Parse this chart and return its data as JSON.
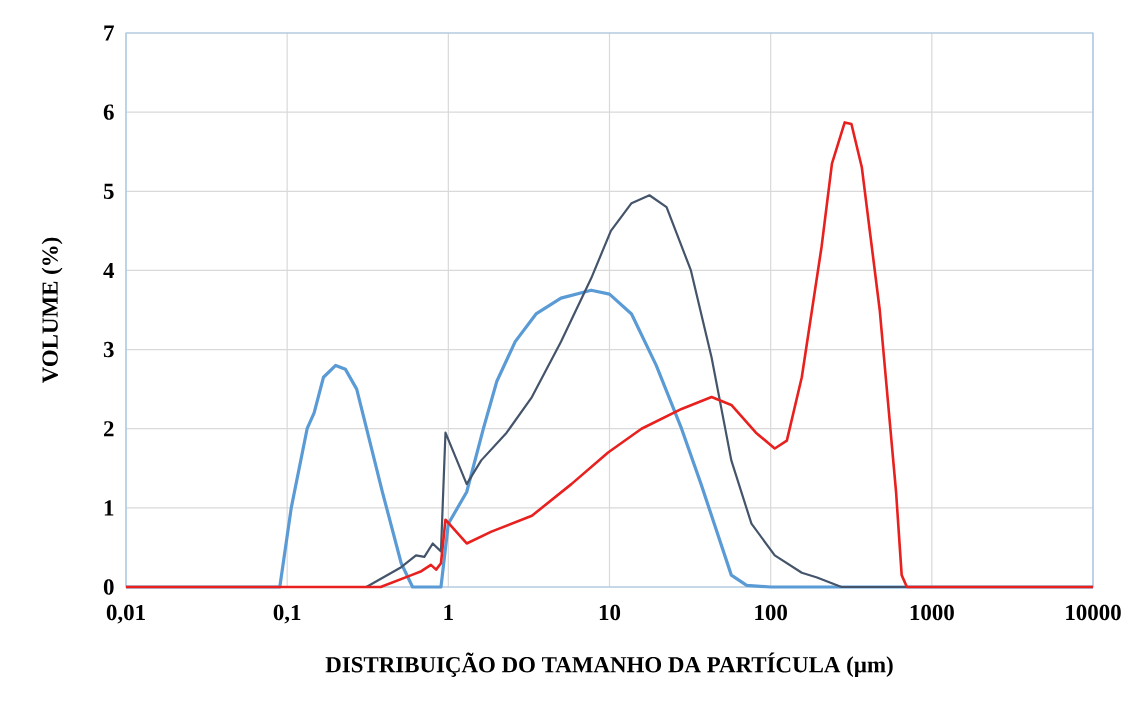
{
  "chart_data": {
    "type": "line",
    "xlabel": "DISTRIBUIÇÃO DO TAMANHO DA PARTÍCULA (µm)",
    "ylabel": "VOLUME (%)",
    "log": "x",
    "grid": true,
    "xlim": [
      0.01,
      10000
    ],
    "ylim": [
      0,
      7
    ],
    "xticks": [
      {
        "value": 0.01,
        "label": "0,01"
      },
      {
        "value": 0.1,
        "label": "0,1"
      },
      {
        "value": 1,
        "label": "1"
      },
      {
        "value": 10,
        "label": "10"
      },
      {
        "value": 100,
        "label": "100"
      },
      {
        "value": 1000,
        "label": "1000"
      },
      {
        "value": 10000,
        "label": "10000"
      }
    ],
    "yticks": [
      0,
      1,
      2,
      3,
      4,
      5,
      6,
      7
    ],
    "series": [
      {
        "color": "#5b9bd5",
        "x": [
          0.01,
          0.09,
          0.106,
          0.133,
          0.147,
          0.168,
          0.2,
          0.23,
          0.27,
          0.32,
          0.39,
          0.51,
          0.6,
          0.9,
          1.0,
          1.3,
          1.65,
          2.0,
          2.6,
          3.5,
          5,
          7.7,
          10,
          13.7,
          19.5,
          28,
          37,
          57,
          71,
          100,
          10000
        ],
        "values": [
          0,
          0,
          1.0,
          2.0,
          2.2,
          2.65,
          2.8,
          2.75,
          2.5,
          1.9,
          1.2,
          0.3,
          0,
          0,
          0.8,
          1.2,
          2.0,
          2.6,
          3.1,
          3.45,
          3.65,
          3.75,
          3.7,
          3.45,
          2.8,
          2.0,
          1.3,
          0.15,
          0.02,
          0,
          0
        ]
      },
      {
        "color": "#44546a",
        "x": [
          0.01,
          0.31,
          0.51,
          0.63,
          0.71,
          0.8,
          0.9,
          0.96,
          1.3,
          1.6,
          2.3,
          3.3,
          5,
          7.7,
          10.2,
          13.7,
          17.7,
          22.6,
          32,
          43,
          57,
          76,
          106,
          156,
          194,
          275,
          10000
        ],
        "values": [
          0,
          0,
          0.25,
          0.4,
          0.38,
          0.55,
          0.45,
          1.95,
          1.3,
          1.6,
          1.95,
          2.4,
          3.1,
          3.9,
          4.5,
          4.85,
          4.95,
          4.8,
          4.0,
          2.9,
          1.6,
          0.8,
          0.4,
          0.18,
          0.12,
          0,
          0
        ]
      },
      {
        "color": "#e8201e",
        "x": [
          0.01,
          0.38,
          0.59,
          0.68,
          0.78,
          0.84,
          0.9,
          0.96,
          1.3,
          1.85,
          3.3,
          5.8,
          9.8,
          15.8,
          28,
          43,
          57,
          81,
          106,
          126,
          156,
          207,
          240,
          288,
          317,
          368,
          475,
          600,
          650,
          700,
          10000
        ],
        "values": [
          0,
          0,
          0.15,
          0.2,
          0.28,
          0.22,
          0.3,
          0.85,
          0.55,
          0.7,
          0.9,
          1.3,
          1.7,
          2.0,
          2.25,
          2.4,
          2.3,
          1.95,
          1.75,
          1.85,
          2.65,
          4.3,
          5.35,
          5.87,
          5.85,
          5.3,
          3.5,
          1.2,
          0.15,
          0,
          0
        ]
      }
    ]
  }
}
